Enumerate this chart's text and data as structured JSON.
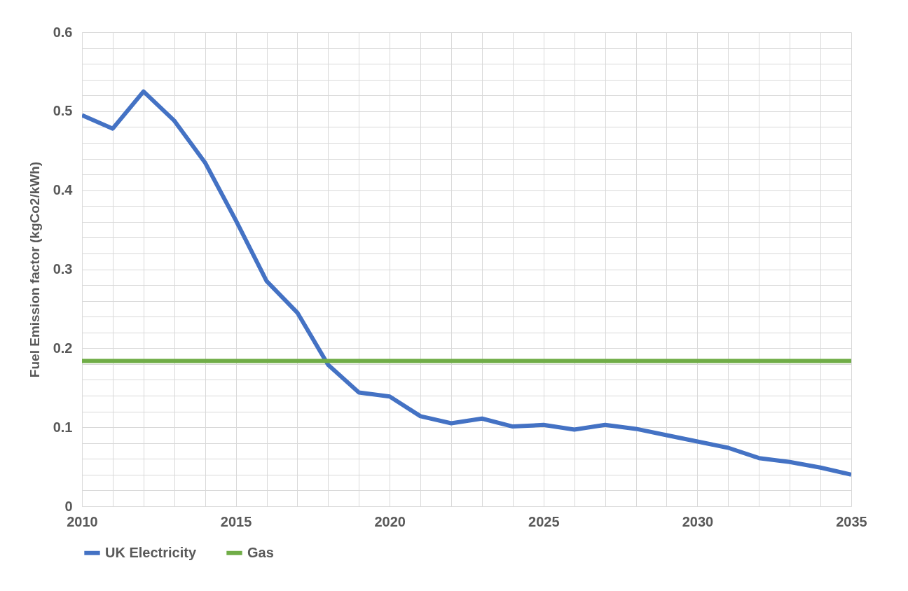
{
  "chart_data": {
    "type": "line",
    "ylabel": "Fuel Emission factor (kgCo2/kWh)",
    "x": [
      2010,
      2011,
      2012,
      2013,
      2014,
      2015,
      2016,
      2017,
      2018,
      2019,
      2020,
      2021,
      2022,
      2023,
      2024,
      2025,
      2026,
      2027,
      2028,
      2029,
      2030,
      2031,
      2032,
      2033,
      2034,
      2035
    ],
    "series": [
      {
        "name": "UK Electricity",
        "color": "#4472c4",
        "values": [
          0.495,
          0.478,
          0.525,
          0.488,
          0.435,
          0.362,
          0.285,
          0.245,
          0.179,
          0.144,
          0.139,
          0.114,
          0.105,
          0.111,
          0.101,
          0.103,
          0.097,
          0.103,
          0.098,
          0.09,
          0.082,
          0.074,
          0.061,
          0.056,
          0.049,
          0.04
        ]
      },
      {
        "name": "Gas",
        "color": "#70ad47",
        "x": [
          2010,
          2035
        ],
        "values": [
          0.184,
          0.184
        ]
      }
    ],
    "xlim": [
      2010,
      2035
    ],
    "ylim": [
      0,
      0.6
    ],
    "xticks": [
      2010,
      {
        "value": 2011,
        "label": null
      },
      {
        "value": 2012,
        "label": null
      },
      {
        "value": 2013,
        "label": null
      },
      {
        "value": 2014,
        "label": null
      },
      2015,
      {
        "value": 2016,
        "label": null
      },
      {
        "value": 2017,
        "label": null
      },
      {
        "value": 2018,
        "label": null
      },
      {
        "value": 2019,
        "label": null
      },
      2020,
      {
        "value": 2021,
        "label": null
      },
      {
        "value": 2022,
        "label": null
      },
      {
        "value": 2023,
        "label": null
      },
      {
        "value": 2024,
        "label": null
      },
      2025,
      {
        "value": 2026,
        "label": null
      },
      {
        "value": 2027,
        "label": null
      },
      {
        "value": 2028,
        "label": null
      },
      {
        "value": 2029,
        "label": null
      },
      2030,
      {
        "value": 2031,
        "label": null
      },
      {
        "value": 2032,
        "label": null
      },
      {
        "value": 2033,
        "label": null
      },
      {
        "value": 2034,
        "label": null
      },
      2035
    ],
    "yticks": [
      0,
      {
        "value": 0.02,
        "label": null
      },
      {
        "value": 0.04,
        "label": null
      },
      {
        "value": 0.06,
        "label": null
      },
      {
        "value": 0.08,
        "label": null
      },
      0.1,
      {
        "value": 0.12,
        "label": null
      },
      {
        "value": 0.14,
        "label": null
      },
      {
        "value": 0.16,
        "label": null
      },
      {
        "value": 0.18,
        "label": null
      },
      0.2,
      {
        "value": 0.22,
        "label": null
      },
      {
        "value": 0.24,
        "label": null
      },
      {
        "value": 0.26,
        "label": null
      },
      {
        "value": 0.28,
        "label": null
      },
      0.3,
      {
        "value": 0.32,
        "label": null
      },
      {
        "value": 0.34,
        "label": null
      },
      {
        "value": 0.36,
        "label": null
      },
      {
        "value": 0.38,
        "label": null
      },
      0.4,
      {
        "value": 0.42,
        "label": null
      },
      {
        "value": 0.44,
        "label": null
      },
      {
        "value": 0.46,
        "label": null
      },
      {
        "value": 0.48,
        "label": null
      },
      0.5,
      {
        "value": 0.52,
        "label": null
      },
      {
        "value": 0.54,
        "label": null
      },
      {
        "value": 0.56,
        "label": null
      },
      {
        "value": 0.58,
        "label": null
      },
      0.6
    ],
    "grid": true,
    "legend": "bottom",
    "line_style": "solid",
    "marker": "none"
  }
}
